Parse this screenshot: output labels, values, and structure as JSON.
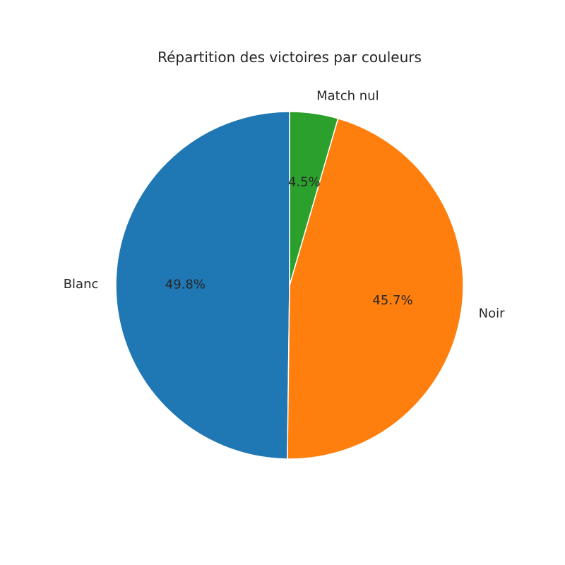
{
  "chart_data": {
    "type": "pie",
    "title": "Répartition des victoires par couleurs",
    "slices": [
      {
        "label": "Blanc",
        "value": 49.8,
        "pct_label": "49.8%",
        "color": "#1f77b4"
      },
      {
        "label": "Noir",
        "value": 45.7,
        "pct_label": "45.7%",
        "color": "#ff7f0e"
      },
      {
        "label": "Match nul",
        "value": 4.5,
        "pct_label": "4.5%",
        "color": "#2ca02c"
      }
    ],
    "start_angle_deg": 90,
    "direction": "counterclockwise",
    "edge_color": "#ffffff"
  }
}
